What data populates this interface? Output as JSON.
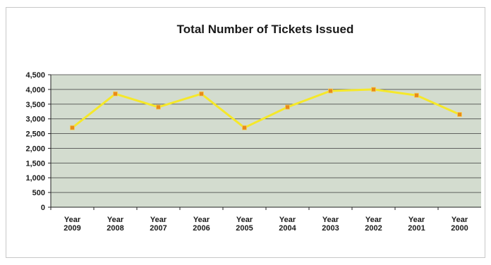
{
  "chart_data": {
    "type": "line",
    "title": "Total Number of Tickets Issued",
    "xlabel": "",
    "ylabel": "",
    "categories": [
      "Year 2009",
      "Year 2008",
      "Year 2007",
      "Year 2006",
      "Year 2005",
      "Year 2004",
      "Year 2003",
      "Year 2002",
      "Year 2001",
      "Year 2000"
    ],
    "series": [
      {
        "values": [
          2700,
          3850,
          3400,
          3850,
          2700,
          3400,
          3950,
          4000,
          3800,
          3150
        ]
      }
    ],
    "ylim": [
      0,
      4500
    ],
    "yticks": [
      "4,500",
      "4,000",
      "3,500",
      "3,000",
      "2,500",
      "2,000",
      "1,500",
      "1,000",
      "500",
      "0"
    ],
    "grid": true,
    "legend": "none",
    "colors": {
      "plot_background": "#d3dccf",
      "gridline": "#3a3a3a",
      "line": "#f5e82a",
      "marker": "#e88a1a"
    }
  }
}
